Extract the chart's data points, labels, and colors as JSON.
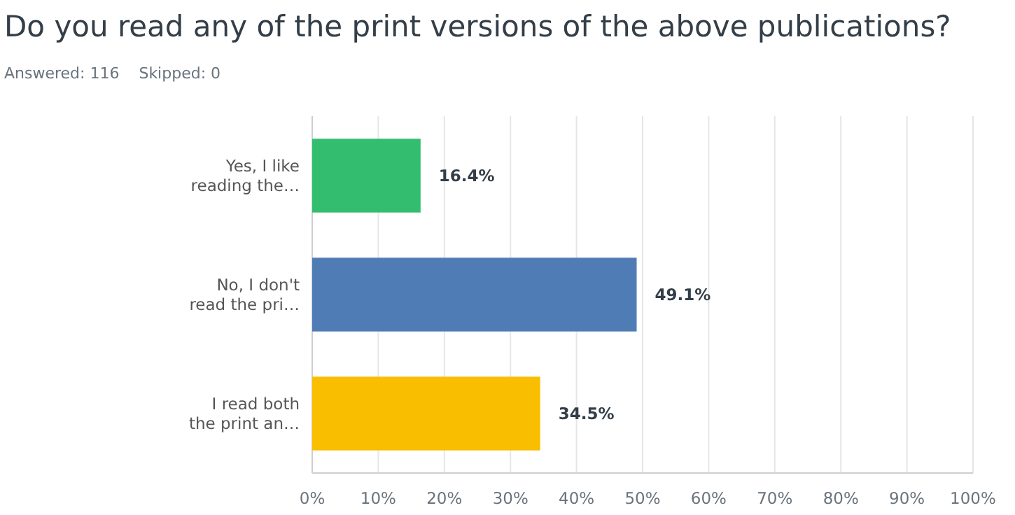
{
  "chart_data": {
    "type": "bar",
    "orientation": "horizontal",
    "title": "Do you read any of the print versions of the above publications?",
    "subtitle": "Answered: 116    Skipped: 0",
    "categories": [
      "Yes, I like reading the…",
      "No, I don't read the pri…",
      "I read both the print an…"
    ],
    "values": [
      16.4,
      49.1,
      34.5
    ],
    "colors": [
      "#33bd6e",
      "#507cb6",
      "#f9be00"
    ],
    "value_labels": [
      "16.4%",
      "49.1%",
      "34.5%"
    ],
    "xlim": [
      0,
      100
    ],
    "xticks": [
      {
        "value": 0,
        "label": "0%"
      },
      {
        "value": 10,
        "label": "10%"
      },
      {
        "value": 20,
        "label": "20%"
      },
      {
        "value": 30,
        "label": "30%"
      },
      {
        "value": 40,
        "label": "40%"
      },
      {
        "value": 50,
        "label": "50%"
      },
      {
        "value": 60,
        "label": "60%"
      },
      {
        "value": 70,
        "label": "70%"
      },
      {
        "value": 80,
        "label": "80%"
      },
      {
        "value": 90,
        "label": "90%"
      },
      {
        "value": 100,
        "label": "100%"
      }
    ],
    "grid": "x"
  }
}
